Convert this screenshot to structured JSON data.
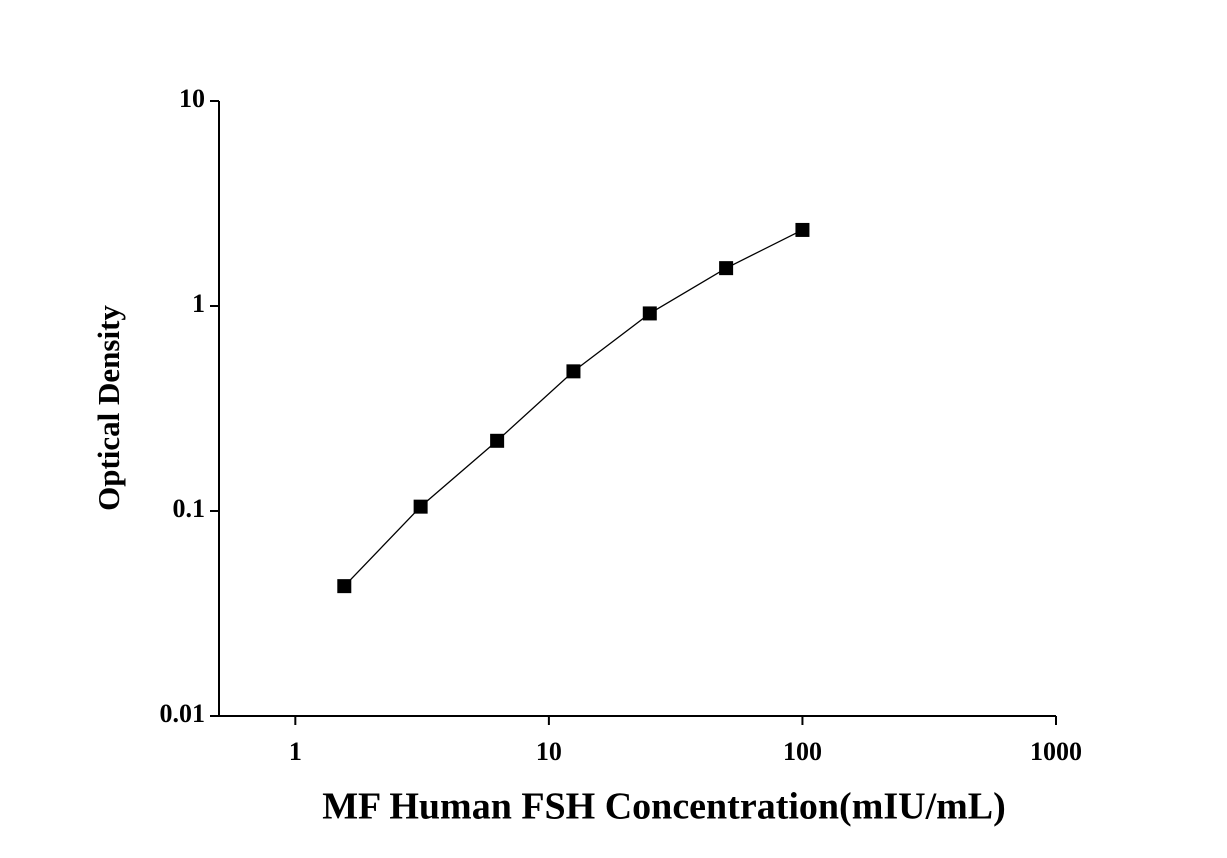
{
  "chart_data": {
    "type": "line",
    "markers": "square",
    "color": "#000000",
    "x_label": "MF Human FSH Concentration(mIU/mL)",
    "y_label": "Optical Density",
    "x": [
      1.56,
      3.12,
      6.25,
      12.5,
      25,
      50,
      100
    ],
    "values": [
      0.043,
      0.105,
      0.22,
      0.48,
      0.92,
      1.53,
      2.35
    ],
    "x_scale": "log",
    "y_scale": "log",
    "xlim": [
      0.5,
      1000
    ],
    "ylim": [
      0.01,
      10
    ],
    "xticks": [
      1,
      10,
      100,
      1000
    ],
    "yticks": [
      0.01,
      0.1,
      1,
      10
    ]
  }
}
